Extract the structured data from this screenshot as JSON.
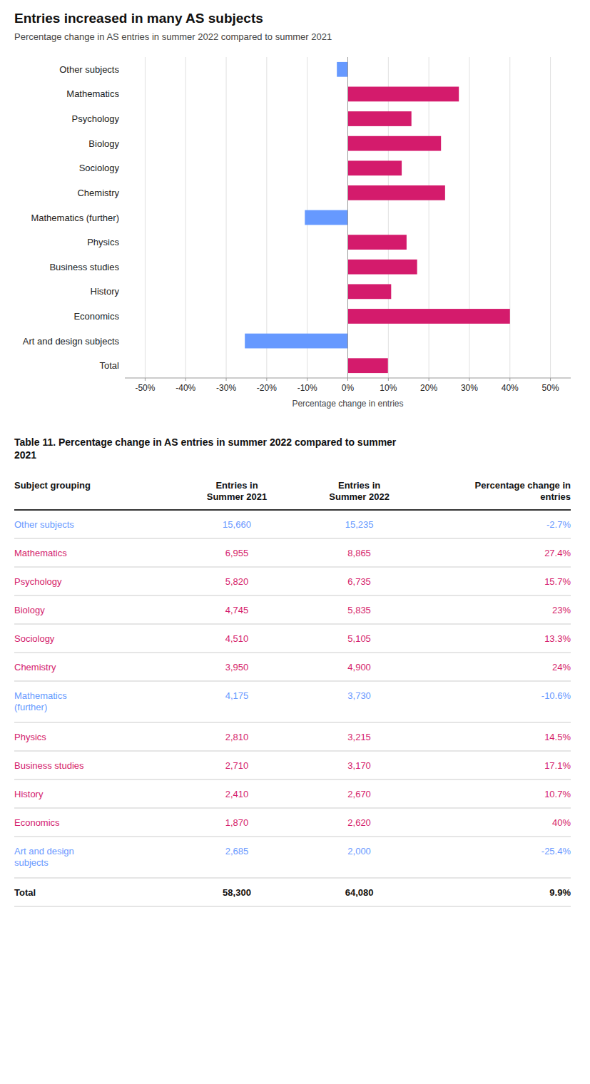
{
  "chart_data": [
    {
      "type": "bar",
      "orientation": "horizontal",
      "title": "Entries increased in many AS subjects",
      "subtitle": "Percentage change in AS entries in summer 2022 compared to summer 2021",
      "categories": [
        "Other subjects",
        "Mathematics",
        "Psychology",
        "Biology",
        "Sociology",
        "Chemistry",
        "Mathematics (further)",
        "Physics",
        "Business studies",
        "History",
        "Economics",
        "Art and design subjects",
        "Total"
      ],
      "values": [
        -2.7,
        27.4,
        15.7,
        23.0,
        13.3,
        24.0,
        -10.6,
        14.5,
        17.1,
        10.7,
        40.0,
        -25.4,
        9.9
      ],
      "colors": [
        "#6699ff",
        "#d41b6c",
        "#d41b6c",
        "#d41b6c",
        "#d41b6c",
        "#d41b6c",
        "#6699ff",
        "#d41b6c",
        "#d41b6c",
        "#d41b6c",
        "#d41b6c",
        "#6699ff",
        "#d41b6c"
      ],
      "xlim": [
        -55,
        55
      ],
      "xticks": [
        {
          "value": -50,
          "label": "-50%"
        },
        {
          "value": -40,
          "label": "-40%"
        },
        {
          "value": -30,
          "label": "-30%"
        },
        {
          "value": -20,
          "label": "-20%"
        },
        {
          "value": -10,
          "label": "-10%"
        },
        {
          "value": 0,
          "label": "0%"
        },
        {
          "value": 10,
          "label": "10%"
        },
        {
          "value": 20,
          "label": "20%"
        },
        {
          "value": 30,
          "label": "30%"
        },
        {
          "value": 40,
          "label": "40%"
        },
        {
          "value": 50,
          "label": "50%"
        }
      ],
      "xlabel": "Percentage change in entries",
      "grid": true
    },
    {
      "type": "table",
      "title": "Table 11. Percentage change in AS entries in summer 2022 compared to summer\n2021",
      "headers": [
        "Subject grouping",
        "Entries in\nSummer 2021",
        "Entries in\nSummer 2022",
        "Percentage change in\nentries"
      ],
      "rows": [
        [
          "Other subjects",
          "15,660",
          "15,235",
          "-2.7%"
        ],
        [
          "Mathematics",
          "6,955",
          "8,865",
          "27.4%"
        ],
        [
          "Psychology",
          "5,820",
          "6,735",
          "15.7%"
        ],
        [
          "Biology",
          "4,745",
          "5,835",
          "23%"
        ],
        [
          "Sociology",
          "4,510",
          "5,105",
          "13.3%"
        ],
        [
          "Chemistry",
          "3,950",
          "4,900",
          "24%"
        ],
        [
          "Mathematics\n(further)",
          "4,175",
          "3,730",
          "-10.6%"
        ],
        [
          "Physics",
          "2,810",
          "3,215",
          "14.5%"
        ],
        [
          "Business studies",
          "2,710",
          "3,170",
          "17.1%"
        ],
        [
          "History",
          "2,410",
          "2,670",
          "10.7%"
        ],
        [
          "Economics",
          "1,870",
          "2,620",
          "40%"
        ],
        [
          "Art and design\nsubjects",
          "2,685",
          "2,000",
          "-25.4%"
        ],
        [
          "Total",
          "58,300",
          "64,080",
          "9.9%"
        ]
      ],
      "colors": [
        "#6699ff",
        "#d41b6c",
        "#d41b6c",
        "#d41b6c",
        "#d41b6c",
        "#d41b6c",
        "#6699ff",
        "#d41b6c",
        "#d41b6c",
        "#d41b6c",
        "#d41b6c",
        "#6699ff",
        "#111111"
      ]
    }
  ]
}
